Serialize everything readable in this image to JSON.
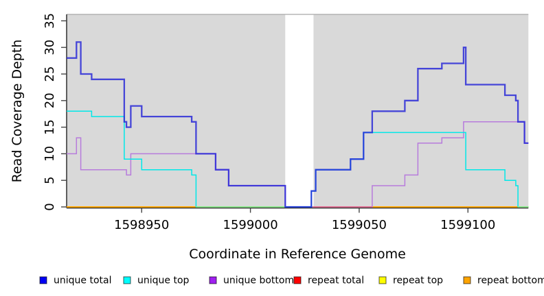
{
  "figure": {
    "background": "#FFFFFF",
    "panel_bg": "#D9D9D9"
  },
  "chart_data": {
    "type": "line",
    "subtype": "step-coverage",
    "title": "",
    "xlabel": "Coordinate in Reference Genome",
    "ylabel": "Read Coverage Depth",
    "xlim": [
      1598915.5,
      1599127.8
    ],
    "ylim": [
      0,
      35
    ],
    "grid": false,
    "legend_position": "bottom",
    "xticks": [
      {
        "value": 1598950,
        "label": "1598950"
      },
      {
        "value": 1599000,
        "label": "1599000"
      },
      {
        "value": 1599050,
        "label": "1599050"
      },
      {
        "value": 1599100,
        "label": "1599100"
      }
    ],
    "yticks": [
      {
        "value": 0,
        "label": "0"
      },
      {
        "value": 5,
        "label": "5"
      },
      {
        "value": 10,
        "label": "10"
      },
      {
        "value": 15,
        "label": "15"
      },
      {
        "value": 20,
        "label": "20"
      },
      {
        "value": 25,
        "label": "25"
      },
      {
        "value": 30,
        "label": "30"
      },
      {
        "value": 35,
        "label": "35"
      }
    ],
    "no_data_gap": {
      "x0": 1599016,
      "x1": 1599029
    },
    "series": [
      {
        "name": "repeat total",
        "line_color": "#E00000",
        "width": 1.5,
        "opacity": 1,
        "steps": [
          [
            1598915.5,
            0
          ]
        ]
      },
      {
        "name": "repeat top",
        "line_color": "#FFFF00",
        "width": 1.5,
        "opacity": 1,
        "steps": [
          [
            1598915.5,
            0
          ]
        ]
      },
      {
        "name": "repeat bottom",
        "line_color": "#FFA500",
        "width": 1.7,
        "opacity": 1,
        "steps": [
          [
            1598915.5,
            0
          ]
        ]
      },
      {
        "name": "unique bottom",
        "line_color": "#B77BDC",
        "width": 1.5,
        "opacity": 1,
        "steps": [
          [
            1598915.5,
            10
          ],
          [
            1598920,
            13
          ],
          [
            1598922,
            7
          ],
          [
            1598943,
            6
          ],
          [
            1598945,
            10
          ],
          [
            1598984,
            7
          ],
          [
            1598990,
            4
          ],
          [
            1599016,
            0
          ],
          [
            1599056,
            4
          ],
          [
            1599071,
            6
          ],
          [
            1599077,
            12
          ],
          [
            1599088,
            13
          ],
          [
            1599098,
            16
          ],
          [
            1599126,
            12
          ]
        ]
      },
      {
        "name": "unique top",
        "line_color": "#00E8E8",
        "width": 1.5,
        "opacity": 1,
        "steps": [
          [
            1598915.5,
            18
          ],
          [
            1598927,
            17
          ],
          [
            1598942,
            9
          ],
          [
            1598950,
            7
          ],
          [
            1598973,
            6
          ],
          [
            1598975,
            0
          ],
          [
            1599028,
            3
          ],
          [
            1599030,
            7
          ],
          [
            1599046,
            9
          ],
          [
            1599052,
            14
          ],
          [
            1599099,
            7
          ],
          [
            1599117,
            5
          ],
          [
            1599122,
            4
          ],
          [
            1599123,
            0
          ]
        ]
      },
      {
        "name": "unique total",
        "line_color": "#2525D8",
        "width": 2.3,
        "opacity": 0.82,
        "steps": [
          [
            1598915.5,
            28
          ],
          [
            1598920,
            31
          ],
          [
            1598922,
            25
          ],
          [
            1598927,
            24
          ],
          [
            1598942,
            16
          ],
          [
            1598943,
            15
          ],
          [
            1598945,
            19
          ],
          [
            1598950,
            17
          ],
          [
            1598973,
            16
          ],
          [
            1598975,
            10
          ],
          [
            1598984,
            7
          ],
          [
            1598990,
            4
          ],
          [
            1599016,
            0
          ],
          [
            1599028,
            3
          ],
          [
            1599030,
            7
          ],
          [
            1599046,
            9
          ],
          [
            1599052,
            14
          ],
          [
            1599056,
            18
          ],
          [
            1599071,
            20
          ],
          [
            1599077,
            26
          ],
          [
            1599088,
            27
          ],
          [
            1599098,
            30
          ],
          [
            1599099,
            23
          ],
          [
            1599117,
            21
          ],
          [
            1599122,
            20
          ],
          [
            1599123,
            16
          ],
          [
            1599126,
            12
          ]
        ]
      }
    ],
    "baseline_overlays": [
      {
        "color": "#8DE98D",
        "x0": 1598975,
        "x1": 1599016,
        "note": "pale-green zero-coverage overlap"
      },
      {
        "color": "#DC6A96",
        "x0": 1599029,
        "x1": 1599056,
        "note": "pink zero-coverage overlap"
      },
      {
        "color": "#8DE98D",
        "x0": 1599123,
        "x1": 1599127.8,
        "note": "pale-green zero-coverage overlap"
      }
    ],
    "legend": [
      {
        "label": "unique total",
        "color": "#0000F5"
      },
      {
        "label": "unique top",
        "color": "#00FFFF"
      },
      {
        "label": "unique bottom",
        "color": "#A020F0"
      },
      {
        "label": "repeat total",
        "color": "#FF0000"
      },
      {
        "label": "repeat top",
        "color": "#FFFF00"
      },
      {
        "label": "repeat bottom",
        "color": "#FFA500"
      }
    ]
  }
}
